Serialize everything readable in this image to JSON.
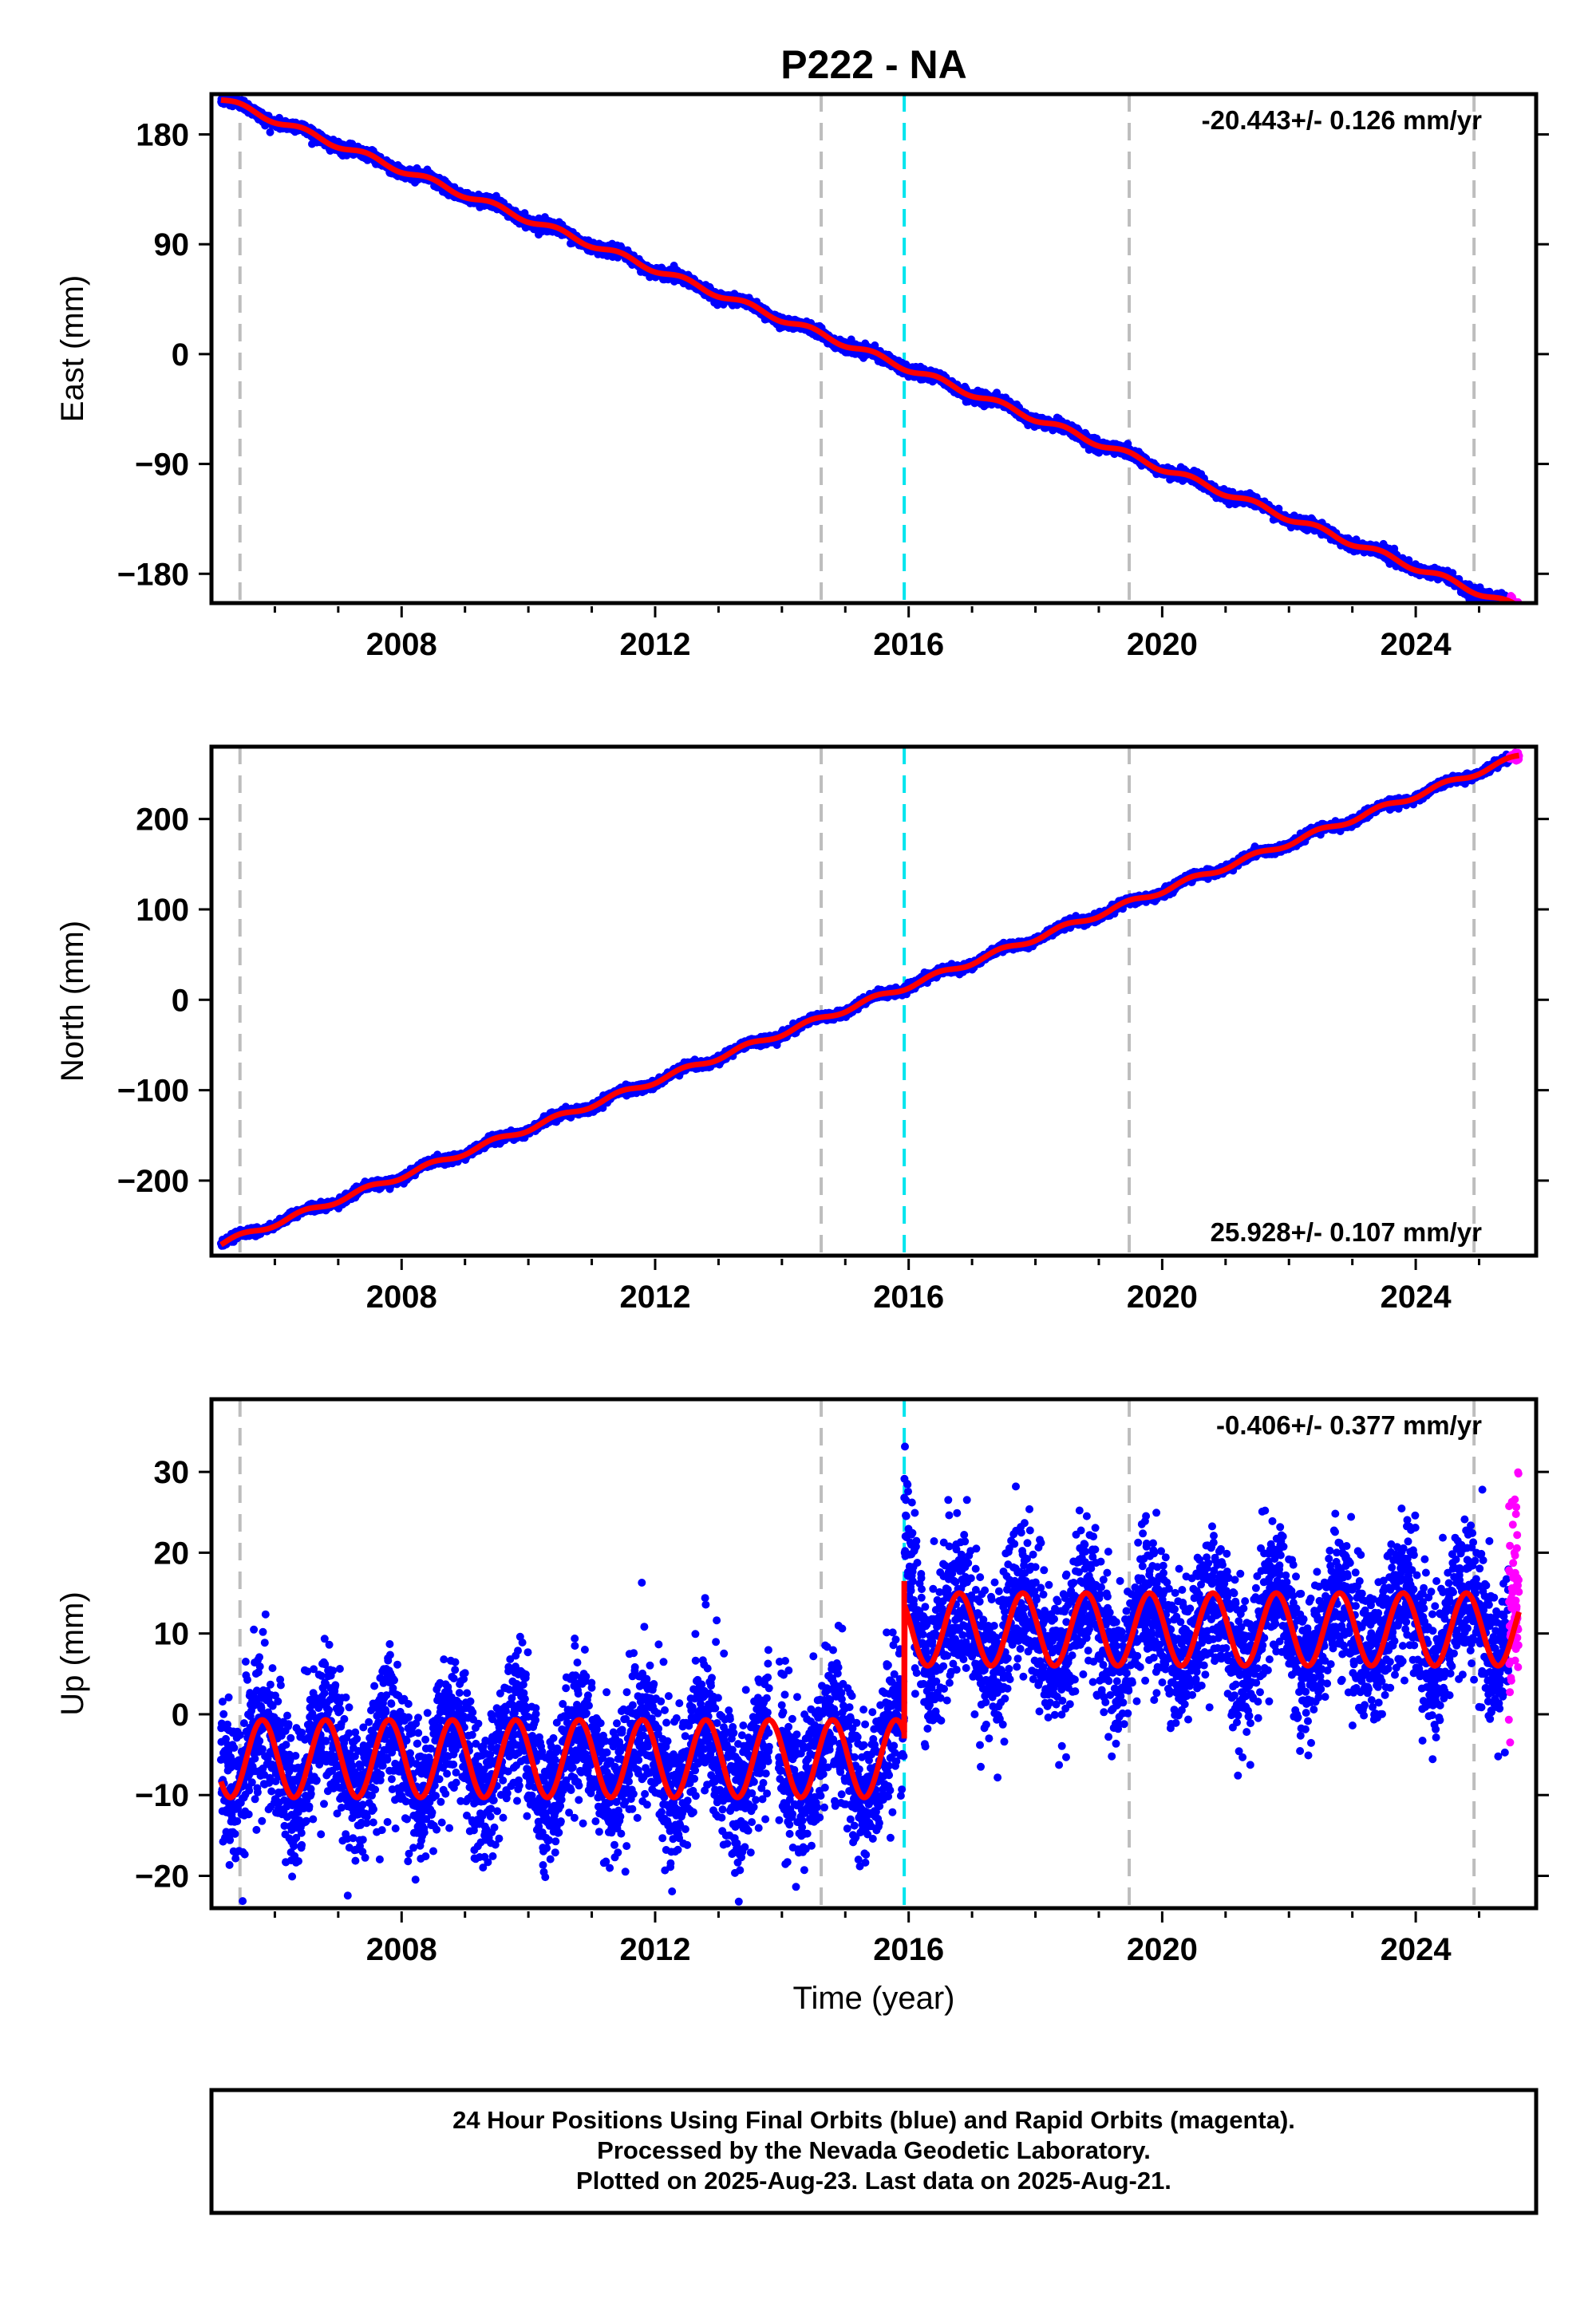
{
  "title": "P222 - NA",
  "colors": {
    "final_orbits": "#0000ff",
    "rapid_orbits": "#ff00ff",
    "model": "#ff0000",
    "event_line": "#bdbdbd",
    "antenna_line": "#00e5ee",
    "frame": "#000000"
  },
  "chart_data": [
    {
      "type": "scatter",
      "ylabel": "East (mm)",
      "xlabel": "",
      "xlim": [
        2005.0,
        2025.9
      ],
      "ylim": [
        -204,
        213
      ],
      "x_ticks": [
        2008,
        2012,
        2016,
        2020,
        2024
      ],
      "y_ticks": [
        180,
        90,
        0,
        -90,
        -180
      ],
      "y_tick_labels": [
        "180",
        "90",
        "0",
        "−90",
        "−180"
      ],
      "rate_label": "-20.443+/- 0.126 mm/yr",
      "rate_label_position": "top-right",
      "velocity_mm_per_yr": -20.443,
      "start": {
        "x": 2005.15,
        "y": 209
      },
      "end": {
        "x": 2025.63,
        "y": -208
      },
      "event_lines_gray": [
        2005.45,
        2014.62,
        2019.48,
        2024.92
      ],
      "event_line_cyan": 2015.93,
      "seasonal_amplitude_mm": 2.5,
      "rapid_orbits_x_range": [
        2025.47,
        2025.63
      ]
    },
    {
      "type": "scatter",
      "ylabel": "North (mm)",
      "xlabel": "",
      "xlim": [
        2005.0,
        2025.9
      ],
      "ylim": [
        -283,
        280
      ],
      "x_ticks": [
        2008,
        2012,
        2016,
        2020,
        2024
      ],
      "y_ticks": [
        200,
        100,
        0,
        -100,
        -200
      ],
      "y_tick_labels": [
        "200",
        "100",
        "0",
        "−100",
        "−200"
      ],
      "rate_label": "25.928+/- 0.107 mm/yr",
      "rate_label_position": "bottom-right",
      "velocity_mm_per_yr": 25.928,
      "start": {
        "x": 2005.15,
        "y": -270
      },
      "end": {
        "x": 2025.63,
        "y": 269
      },
      "event_lines_gray": [
        2005.45,
        2014.62,
        2019.48,
        2024.92
      ],
      "event_line_cyan": 2015.93,
      "seasonal_amplitude_mm": 3.0,
      "rapid_orbits_x_range": [
        2025.47,
        2025.63
      ]
    },
    {
      "type": "scatter",
      "ylabel": "Up (mm)",
      "xlabel": "Time (year)",
      "xlim": [
        2005.0,
        2025.9
      ],
      "ylim": [
        -24,
        39
      ],
      "x_ticks": [
        2008,
        2012,
        2016,
        2020,
        2024
      ],
      "y_ticks": [
        30,
        20,
        10,
        0,
        -10,
        -20
      ],
      "y_tick_labels": [
        "30",
        "20",
        "10",
        "0",
        "−10",
        "−20"
      ],
      "rate_label": "-0.406+/- 0.377 mm/yr",
      "rate_label_position": "top-right",
      "velocity_mm_per_yr": -0.406,
      "event_lines_gray": [
        2005.45,
        2014.62,
        2019.48,
        2024.92
      ],
      "event_line_cyan": 2015.93,
      "model_segments": [
        {
          "x_range": [
            2005.15,
            2015.93
          ],
          "mean": -5.5,
          "amplitude": 4.8
        },
        {
          "x_range": [
            2015.93,
            2025.63
          ],
          "mean": 10.5,
          "amplitude": 4.5
        }
      ],
      "step_at_x": 2015.93,
      "step_from": -3.0,
      "step_to": 16.5,
      "scatter_noise_mm": 4.5,
      "rapid_orbits_x_range": [
        2025.47,
        2025.63
      ],
      "rapid_orbits_y_range": [
        8,
        30
      ]
    }
  ],
  "footer": {
    "line1": "24 Hour Positions Using Final Orbits (blue) and Rapid Orbits (magenta).",
    "line2": "Processed by the Nevada Geodetic Laboratory.",
    "line3": "Plotted on 2025-Aug-23. Last data on 2025-Aug-21."
  }
}
